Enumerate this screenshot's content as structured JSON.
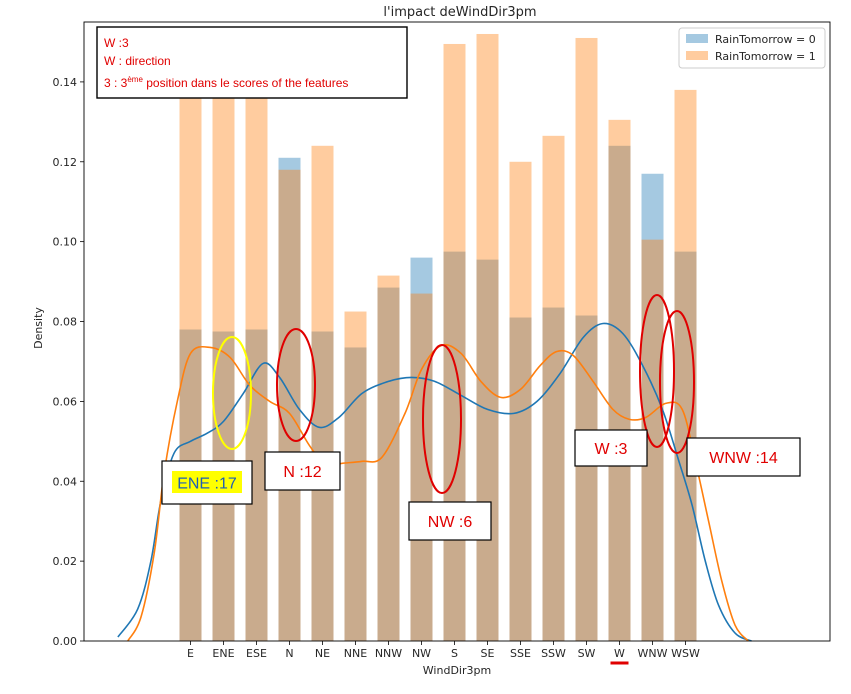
{
  "chart_data": {
    "type": "bar",
    "title": "l'impact deWindDir3pm",
    "xlabel": "WindDir3pm",
    "ylabel": "Density",
    "ylim": [
      0,
      0.155
    ],
    "yticks": [
      "0.00",
      "0.02",
      "0.04",
      "0.06",
      "0.08",
      "0.10",
      "0.12",
      "0.14"
    ],
    "categories": [
      "E",
      "ENE",
      "ESE",
      "N",
      "NE",
      "NNE",
      "NNW",
      "NW",
      "S",
      "SE",
      "SSE",
      "SSW",
      "SW",
      "W",
      "WNW",
      "WSW"
    ],
    "legend_position": "top-right",
    "series": [
      {
        "name": "RainTomorrow = 0",
        "color": "#1f77b4",
        "values": [
          0.078,
          0.0775,
          0.078,
          0.121,
          0.0775,
          0.0735,
          0.0885,
          0.096,
          0.0975,
          0.0955,
          0.081,
          0.0835,
          0.0815,
          0.124,
          0.117,
          0.0975
        ]
      },
      {
        "name": "RainTomorrow = 1",
        "color": "#ff7f0e",
        "values": [
          0.149,
          0.15,
          0.138,
          0.118,
          0.124,
          0.0825,
          0.0915,
          0.087,
          0.1495,
          0.152,
          0.12,
          0.1265,
          0.151,
          0.1305,
          0.1005,
          0.138
        ]
      }
    ],
    "kde_series": [
      {
        "name": "RainTomorrow = 0",
        "color": "#1f77b4",
        "points": [
          [
            -2.2,
            0.001
          ],
          [
            -1.6,
            0.008
          ],
          [
            -1.2,
            0.02
          ],
          [
            -0.9,
            0.035
          ],
          [
            -0.5,
            0.047
          ],
          [
            0.0,
            0.05
          ],
          [
            0.5,
            0.052
          ],
          [
            1.0,
            0.055
          ],
          [
            1.6,
            0.062
          ],
          [
            2.2,
            0.0695
          ],
          [
            2.7,
            0.066
          ],
          [
            3.3,
            0.058
          ],
          [
            3.9,
            0.0535
          ],
          [
            4.5,
            0.056
          ],
          [
            5.2,
            0.062
          ],
          [
            6.0,
            0.065
          ],
          [
            6.7,
            0.066
          ],
          [
            7.4,
            0.065
          ],
          [
            8.2,
            0.0615
          ],
          [
            9.0,
            0.058
          ],
          [
            9.8,
            0.057
          ],
          [
            10.5,
            0.06
          ],
          [
            11.2,
            0.067
          ],
          [
            11.9,
            0.076
          ],
          [
            12.5,
            0.0795
          ],
          [
            13.1,
            0.077
          ],
          [
            13.7,
            0.069
          ],
          [
            14.3,
            0.058
          ],
          [
            14.8,
            0.045
          ],
          [
            15.2,
            0.034
          ],
          [
            15.6,
            0.02
          ],
          [
            16.0,
            0.009
          ],
          [
            16.5,
            0.002
          ],
          [
            17.0,
            0.0
          ]
        ]
      },
      {
        "name": "RainTomorrow = 1",
        "color": "#ff7f0e",
        "points": [
          [
            -1.9,
            0.0
          ],
          [
            -1.5,
            0.006
          ],
          [
            -1.1,
            0.022
          ],
          [
            -0.8,
            0.042
          ],
          [
            -0.4,
            0.06
          ],
          [
            0.0,
            0.072
          ],
          [
            0.6,
            0.0735
          ],
          [
            1.2,
            0.071
          ],
          [
            1.8,
            0.064
          ],
          [
            2.4,
            0.06
          ],
          [
            3.0,
            0.057
          ],
          [
            3.6,
            0.049
          ],
          [
            4.1,
            0.044
          ],
          [
            4.6,
            0.0445
          ],
          [
            5.2,
            0.045
          ],
          [
            5.8,
            0.046
          ],
          [
            6.5,
            0.057
          ],
          [
            7.0,
            0.068
          ],
          [
            7.6,
            0.074
          ],
          [
            8.2,
            0.072
          ],
          [
            8.8,
            0.065
          ],
          [
            9.4,
            0.061
          ],
          [
            10.0,
            0.063
          ],
          [
            10.6,
            0.069
          ],
          [
            11.1,
            0.0725
          ],
          [
            11.6,
            0.0715
          ],
          [
            12.2,
            0.065
          ],
          [
            12.8,
            0.058
          ],
          [
            13.3,
            0.0555
          ],
          [
            13.8,
            0.056
          ],
          [
            14.4,
            0.0595
          ],
          [
            14.9,
            0.058
          ],
          [
            15.3,
            0.045
          ],
          [
            15.7,
            0.03
          ],
          [
            16.1,
            0.015
          ],
          [
            16.5,
            0.004
          ],
          [
            16.9,
            0.0
          ]
        ]
      }
    ],
    "annotations": {
      "note_lines": [
        "W :3",
        "W : direction"
      ],
      "note_line3_prefix": "3 : 3",
      "note_line3_sup": "ème",
      "note_line3_suffix": " position dans le scores of the features",
      "callouts": [
        "ENE :17",
        "N :12",
        "NW :6",
        "W :3",
        "WNW :14"
      ],
      "highlight_color": "#ffff00",
      "ellipse_colors": {
        "ENE": "#ffff00",
        "others": "#e00000"
      }
    }
  }
}
